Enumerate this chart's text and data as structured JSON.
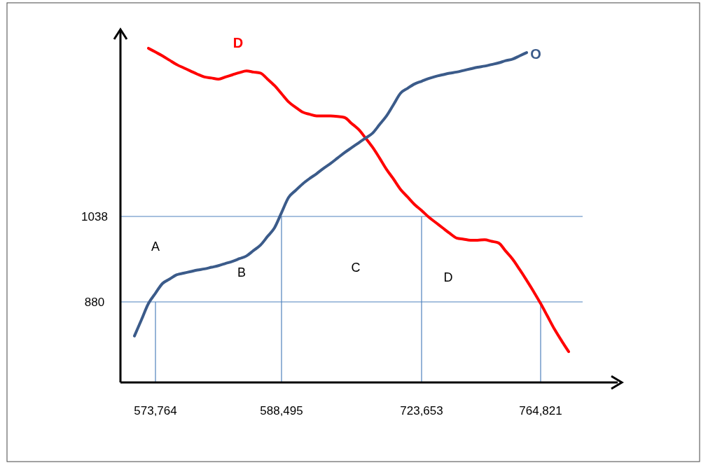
{
  "chart_data": {
    "type": "line",
    "categories": [
      null,
      null,
      null,
      null,
      null,
      "573,764",
      null,
      null,
      null,
      null,
      null,
      null,
      null,
      null,
      null,
      null,
      null,
      null,
      null,
      null,
      null,
      null,
      null,
      "588,495",
      null,
      null,
      null,
      null,
      null,
      null,
      null,
      null,
      null,
      null,
      null,
      null,
      null,
      null,
      null,
      null,
      null,
      null,
      null,
      "723,653",
      null,
      null,
      null,
      null,
      null,
      null,
      null,
      null,
      null,
      null,
      null,
      null,
      null,
      null,
      null,
      null,
      "764,821",
      null,
      null,
      null,
      null,
      null,
      null,
      null,
      null,
      null,
      null,
      null
    ],
    "series": [
      {
        "name": "D",
        "color": "#ff0000",
        "values": [
          null,
          null,
          null,
          null,
          1349,
          1342,
          1335,
          1327,
          1319,
          1313,
          1307,
          1301,
          1296,
          1294,
          1292,
          1296,
          1300,
          1304,
          1307,
          1305,
          1303,
          1292,
          1280,
          1265,
          1250,
          1240,
          1231,
          1227,
          1224,
          1224,
          1224,
          1223,
          1221,
          1210,
          1199,
          1183,
          1166,
          1146,
          1125,
          1107,
          1088,
          1074,
          1060,
          1049,
          1037,
          1027,
          1017,
          1007,
          998,
          996,
          994,
          994,
          995,
          992,
          989,
          974,
          959,
          940,
          920,
          899,
          877,
          853,
          829,
          808,
          788,
          null,
          null,
          null,
          null,
          null,
          null,
          null
        ]
      },
      {
        "name": "O",
        "color": "#3b5b8a",
        "values": [
          null,
          null,
          817,
          847,
          877,
          896,
          914,
          922,
          930,
          933,
          936,
          939,
          941,
          944,
          947,
          951,
          955,
          960,
          965,
          975,
          985,
          1001,
          1017,
          1045,
          1073,
          1086,
          1098,
          1108,
          1117,
          1127,
          1136,
          1146,
          1156,
          1165,
          1174,
          1183,
          1192,
          1208,
          1224,
          1245,
          1266,
          1275,
          1283,
          1288,
          1293,
          1297,
          1300,
          1303,
          1305,
          1308,
          1311,
          1314,
          1316,
          1319,
          1322,
          1326,
          1329,
          1335,
          1341,
          null,
          null,
          null,
          null,
          null,
          null,
          null,
          null,
          null,
          null,
          null,
          null,
          null
        ]
      }
    ],
    "ylim": [
      731,
      1380
    ],
    "yticks": [
      880,
      1038
    ],
    "ref_lines": [
      {
        "axis": "y",
        "value": 1038,
        "color": "#4f81bd"
      },
      {
        "axis": "y",
        "value": 880,
        "color": "#4f81bd"
      },
      {
        "axis": "x",
        "value": "573,764",
        "color": "#4f81bd"
      },
      {
        "axis": "x",
        "value": "588,495",
        "color": "#4f81bd"
      },
      {
        "axis": "x",
        "value": "723,653",
        "color": "#4f81bd"
      },
      {
        "axis": "x",
        "value": "764,821",
        "color": "#4f81bd"
      }
    ],
    "annotations": [
      "A",
      "B",
      "C",
      "D"
    ],
    "marker": "none",
    "line_style": "solid",
    "grid": false
  }
}
